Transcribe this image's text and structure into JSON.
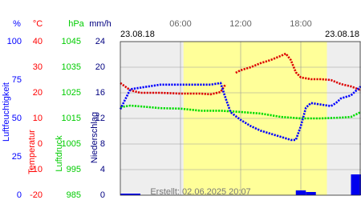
{
  "chart_data": {
    "type": "line",
    "dates": [
      "23.08.18",
      "23.08.18"
    ],
    "note": "Erstellt: 02.06.2025 20:07",
    "xlim": [
      0,
      24
    ],
    "xticks": [
      {
        "value": 6,
        "label": "06:00"
      },
      {
        "value": 12,
        "label": "12:00"
      },
      {
        "value": 18,
        "label": "18:00"
      }
    ],
    "daylight": [
      6.3,
      20.6
    ],
    "grid": true,
    "axes": [
      {
        "unit": "%",
        "label": "Luftfeuchtigkeit",
        "color": "#0000ff",
        "lim": [
          0,
          100
        ],
        "ticks": [
          0,
          25,
          50,
          75,
          100
        ]
      },
      {
        "unit": "°C",
        "label": "Temperatur",
        "color": "#ff0000",
        "lim": [
          -20,
          40
        ],
        "ticks": [
          -20,
          -10,
          0,
          10,
          20,
          30,
          40
        ]
      },
      {
        "unit": "hPa",
        "label": "Luftdruck",
        "color": "#00cc00",
        "lim": [
          985,
          1045
        ],
        "ticks": [
          985,
          995,
          1005,
          1015,
          1025,
          1035,
          1045
        ]
      },
      {
        "unit": "mm/h",
        "label": "Niederschlag",
        "color": "#000080",
        "lim": [
          0,
          24
        ],
        "ticks": [
          0,
          4,
          8,
          12,
          16,
          20,
          24
        ]
      }
    ],
    "series": [
      {
        "axis": 1,
        "type": "line",
        "color": "#dd0000",
        "x": [
          0,
          1,
          2,
          4,
          6,
          8,
          9,
          10,
          10.5,
          11,
          11.5,
          12,
          13,
          14,
          15,
          16,
          16.5,
          17,
          17.5,
          18,
          19,
          20,
          21,
          22,
          23,
          24
        ],
        "values": [
          23.8,
          21,
          20,
          20,
          19.7,
          19.7,
          19.4,
          20.3,
          23.4,
          null,
          27.8,
          28.8,
          30,
          31.6,
          32.8,
          34.4,
          35.3,
          32.8,
          28,
          26,
          25.3,
          25.3,
          25,
          23.4,
          22.5,
          21
        ]
      },
      {
        "axis": 2,
        "type": "line",
        "color": "#00dd00",
        "x": [
          0,
          1,
          2,
          4,
          6,
          8,
          10,
          12,
          14,
          16,
          18,
          20,
          22,
          23,
          24
        ],
        "values": [
          1019.4,
          1020,
          1019.7,
          1019,
          1018.8,
          1018,
          1018,
          1017.5,
          1016.9,
          1015.6,
          1015,
          1015,
          1015.3,
          1015.6,
          1017.5
        ]
      },
      {
        "axis": 0,
        "type": "line",
        "color": "#0000ff",
        "x": [
          0,
          1,
          2,
          4,
          6,
          8,
          9,
          10,
          10.5,
          11,
          12,
          13,
          14,
          15,
          16,
          17,
          17.5,
          18,
          18.5,
          19,
          20,
          21,
          21.5,
          22,
          23,
          24
        ],
        "values": [
          56,
          69,
          70,
          72,
          72,
          72,
          72,
          73,
          63,
          54,
          49,
          45,
          42,
          40,
          38,
          36,
          36,
          45,
          57,
          60,
          59,
          58,
          60,
          63,
          65,
          71
        ]
      },
      {
        "axis": 3,
        "type": "bar",
        "color": "#0000ee",
        "x": [
          0,
          1,
          17.5,
          18.5,
          23
        ],
        "values": [
          0.25,
          0.25,
          0.75,
          0.5,
          3.25
        ]
      }
    ]
  }
}
